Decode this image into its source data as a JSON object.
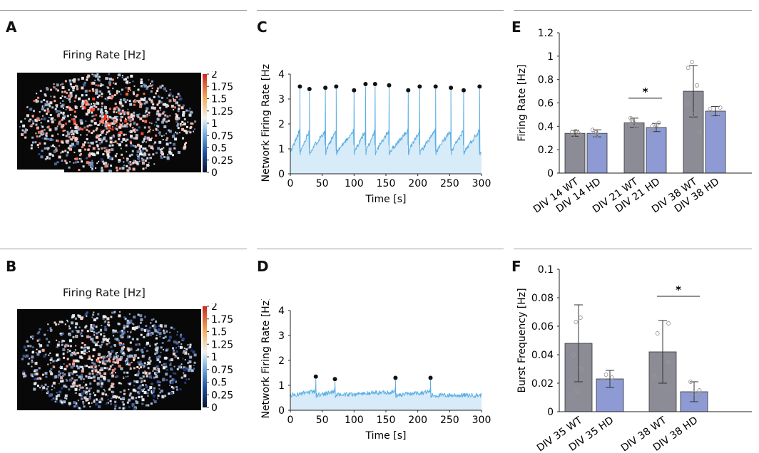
{
  "panels": {
    "A": {
      "label": "A",
      "title": "Firing Rate [Hz]",
      "colorbar_ticks": [
        "2",
        "1.75",
        "1.5",
        "1.25",
        "1",
        "0.75",
        "0.5",
        "0.25",
        "0"
      ],
      "colors": {
        "low": "#1a3a8a",
        "mid": "#ffffff",
        "high": "#e0201a"
      }
    },
    "B": {
      "label": "B",
      "title": "Firing Rate [Hz]",
      "colorbar_ticks": [
        "2",
        "1.75",
        "1.5",
        "1.25",
        "1",
        "0.75",
        "0.5",
        "0.25",
        "0"
      ]
    },
    "C": {
      "label": "C"
    },
    "D": {
      "label": "D"
    },
    "E": {
      "label": "E"
    },
    "F": {
      "label": "F"
    }
  },
  "chart_data": [
    {
      "id": "C",
      "type": "line",
      "title": "",
      "xlabel": "Time [s]",
      "ylabel": "Network Firing Rate [Hz]",
      "xlim": [
        0,
        300
      ],
      "ylim": [
        0,
        4
      ],
      "xticks": [
        "0",
        "50",
        "100",
        "150",
        "200",
        "250",
        "300"
      ],
      "yticks": [
        "0",
        "1",
        "2",
        "3",
        "4"
      ],
      "baseline": 0.85,
      "color": "#5aaee3",
      "fill": "#d8ebf8",
      "peaks": [
        {
          "t": 15,
          "y": 3.5
        },
        {
          "t": 30,
          "y": 3.4
        },
        {
          "t": 55,
          "y": 3.45
        },
        {
          "t": 72,
          "y": 3.5
        },
        {
          "t": 100,
          "y": 3.35
        },
        {
          "t": 118,
          "y": 3.6
        },
        {
          "t": 133,
          "y": 3.6
        },
        {
          "t": 155,
          "y": 3.55
        },
        {
          "t": 185,
          "y": 3.35
        },
        {
          "t": 203,
          "y": 3.5
        },
        {
          "t": 228,
          "y": 3.5
        },
        {
          "t": 252,
          "y": 3.45
        },
        {
          "t": 272,
          "y": 3.35
        },
        {
          "t": 297,
          "y": 3.5
        }
      ]
    },
    {
      "id": "D",
      "type": "line",
      "title": "",
      "xlabel": "Time [s]",
      "ylabel": "Network Firing Rate [Hz]",
      "xlim": [
        0,
        300
      ],
      "ylim": [
        0,
        4
      ],
      "xticks": [
        "0",
        "50",
        "100",
        "150",
        "200",
        "250",
        "300"
      ],
      "yticks": [
        "0",
        "1",
        "2",
        "3",
        "4"
      ],
      "baseline": 0.6,
      "color": "#5aaee3",
      "fill": "#d8ebf8",
      "peaks": [
        {
          "t": 40,
          "y": 1.35
        },
        {
          "t": 70,
          "y": 1.25
        },
        {
          "t": 165,
          "y": 1.3
        },
        {
          "t": 220,
          "y": 1.3
        }
      ]
    },
    {
      "id": "E",
      "type": "bar",
      "title": "",
      "xlabel": "",
      "ylabel": "Firing Rate [Hz]",
      "ylim": [
        0,
        1.2
      ],
      "yticks": [
        "0",
        "0.2",
        "0.4",
        "0.6",
        "0.8",
        "1",
        "1.2"
      ],
      "categories": [
        "DIV 14 WT",
        "DIV 14 HD",
        "DIV 21 WT",
        "DIV 21 HD",
        "DIV 38 WT",
        "DIV 38 HD"
      ],
      "values": [
        0.34,
        0.34,
        0.43,
        0.39,
        0.7,
        0.53
      ],
      "errors": [
        0.025,
        0.03,
        0.04,
        0.035,
        0.22,
        0.04
      ],
      "groups": [
        0,
        0,
        1,
        1,
        2,
        2
      ],
      "colors": [
        "#8c8c96",
        "#8e9ad4",
        "#8c8c96",
        "#8e9ad4",
        "#8c8c96",
        "#8e9ad4"
      ],
      "points": [
        [
          0.36,
          0.35,
          0.33,
          0.32,
          0.34
        ],
        [
          0.37,
          0.33,
          0.35,
          0.32,
          0.34
        ],
        [
          0.47,
          0.44,
          0.4,
          0.42,
          0.45
        ],
        [
          0.43,
          0.37,
          0.35,
          0.4,
          0.41
        ],
        [
          0.95,
          0.9,
          0.6,
          0.35,
          0.5,
          0.75
        ],
        [
          0.55,
          0.52,
          0.49,
          0.56,
          0.5
        ]
      ],
      "significance": [
        {
          "from": 2,
          "to": 3,
          "y": 0.64,
          "label": "*"
        }
      ]
    },
    {
      "id": "F",
      "type": "bar",
      "title": "",
      "xlabel": "",
      "ylabel": "Burst Frequency [Hz]",
      "ylim": [
        0,
        0.1
      ],
      "yticks": [
        "0",
        "0.02",
        "0.04",
        "0.06",
        "0.08",
        "0.1"
      ],
      "categories": [
        "DIV 35 WT",
        "DIV 35 HD",
        "DIV 38 WT",
        "DIV 38 HD"
      ],
      "values": [
        0.048,
        0.023,
        0.042,
        0.014
      ],
      "errors": [
        0.027,
        0.006,
        0.022,
        0.007
      ],
      "groups": [
        0,
        0,
        1,
        1
      ],
      "colors": [
        "#8c8c96",
        "#8e9ad4",
        "#8c8c96",
        "#8e9ad4"
      ],
      "points": [
        [
          0.066,
          0.063,
          0.04,
          0.03,
          0.014
        ],
        [
          0.026,
          0.024,
          0.022
        ],
        [
          0.062,
          0.055,
          0.035,
          0.025
        ],
        [
          0.021,
          0.015,
          0.012,
          0.012,
          0.013,
          0.011
        ]
      ],
      "significance": [
        {
          "from": 2,
          "to": 3,
          "y": 0.081,
          "label": "*"
        }
      ]
    }
  ]
}
